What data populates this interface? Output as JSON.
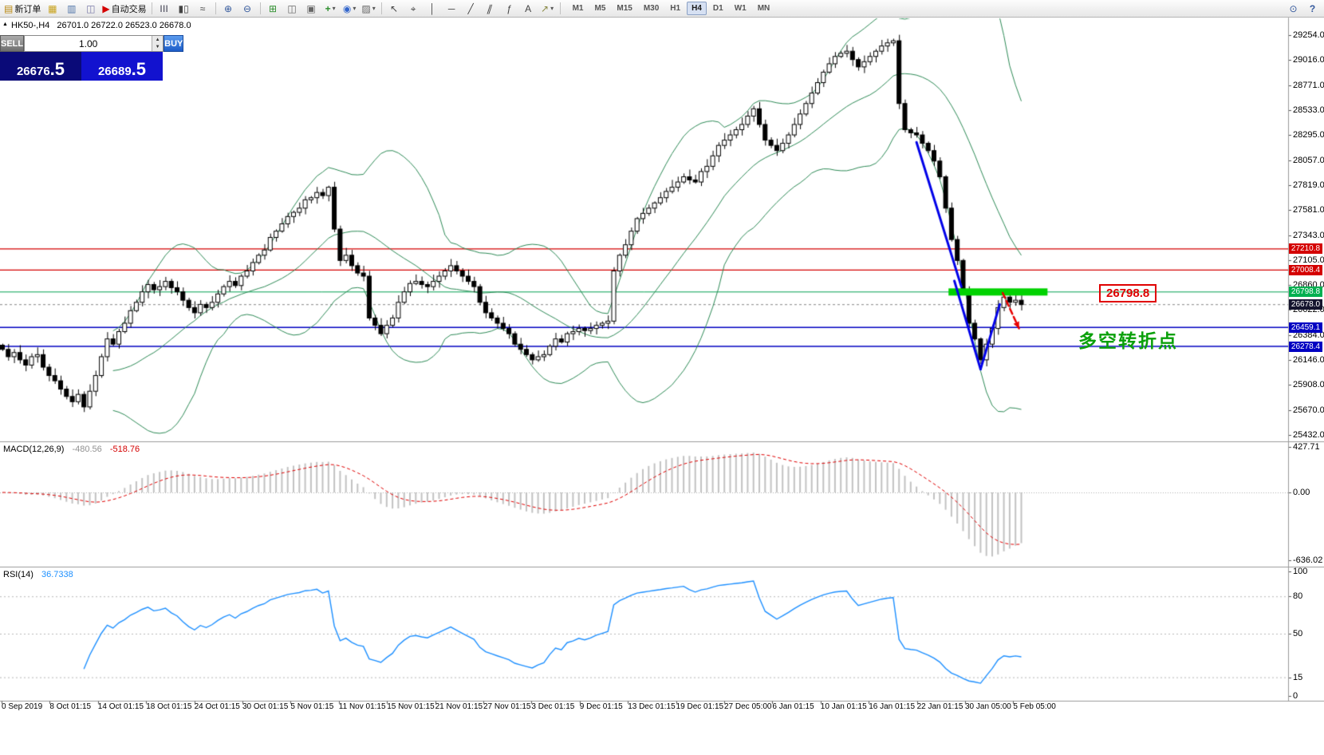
{
  "toolbar": {
    "new_order_label": "新订单",
    "auto_trading_label": "自动交易",
    "timeframes": [
      "M1",
      "M5",
      "M15",
      "M30",
      "H1",
      "H4",
      "D1",
      "W1",
      "MN"
    ],
    "active_timeframe": "H4"
  },
  "chart_header": {
    "symbol_info": "HK50-,H4",
    "ohlc": "26701.0 26722.0 26523.0 26678.0"
  },
  "trade_panel": {
    "sell_label": "SELL",
    "buy_label": "BUY",
    "volume": "1.00",
    "sell_price": "26676",
    "sell_frac": ".5",
    "buy_price": "26689",
    "buy_frac": ".5"
  },
  "annotations": {
    "level_label": "26798.8",
    "turning_point": "多空转折点"
  },
  "macd_panel": {
    "name": "MACD(12,26,9)",
    "main_value": "-480.56",
    "signal_value": "-518.76",
    "axis": [
      {
        "v": 427.71,
        "t": "427.71"
      },
      {
        "v": 0,
        "t": "0.00"
      },
      {
        "v": -636.02,
        "t": "-636.02"
      }
    ]
  },
  "rsi_panel": {
    "name": "RSI(14)",
    "value": "36.7338",
    "axis": [
      {
        "v": 100,
        "t": "100"
      },
      {
        "v": 80,
        "t": "80"
      },
      {
        "v": 50,
        "t": "50"
      },
      {
        "v": 15,
        "t": "15"
      },
      {
        "v": 0,
        "t": "0"
      }
    ],
    "levels": [
      80,
      50,
      15
    ]
  },
  "price_axis": {
    "ticks": [
      "29254.0",
      "29016.0",
      "28771.0",
      "28533.0",
      "28295.0",
      "28057.0",
      "27819.0",
      "27581.0",
      "27343.0",
      "27105.0",
      "26860.0",
      "26622.0",
      "26384.0",
      "26146.0",
      "25908.0",
      "25670.0",
      "25432.0"
    ]
  },
  "price_tags": [
    {
      "text": "27210.8",
      "value": 27210.8,
      "bg": "#d40000",
      "fg": "#ffffff"
    },
    {
      "text": "27008.4",
      "value": 27008.4,
      "bg": "#d40000",
      "fg": "#ffffff"
    },
    {
      "text": "26798.8",
      "value": 26798.8,
      "bg": "#00b050",
      "fg": "#ffffff"
    },
    {
      "text": "26678.0",
      "value": 26678.0,
      "bg": "#14142e",
      "fg": "#ffffff"
    },
    {
      "text": "26459.1",
      "value": 26459.1,
      "bg": "#0202c2",
      "fg": "#ffffff"
    },
    {
      "text": "26278.4",
      "value": 26278.4,
      "bg": "#0202c2",
      "fg": "#ffffff"
    }
  ],
  "time_axis": {
    "labels": [
      "0 Sep 2019",
      "8 Oct 01:15",
      "14 Oct 01:15",
      "18 Oct 01:15",
      "24 Oct 01:15",
      "30 Oct 01:15",
      "5 Nov 01:15",
      "11 Nov 01:15",
      "15 Nov 01:15",
      "21 Nov 01:15",
      "27 Nov 01:15",
      "3 Dec 01:15",
      "9 Dec 01:15",
      "13 Dec 01:15",
      "19 Dec 01:15",
      "27 Dec 05:00",
      "6 Jan 01:15",
      "10 Jan 01:15",
      "16 Jan 01:15",
      "22 Jan 01:15",
      "30 Jan 05:00",
      "5 Feb 05:00"
    ]
  },
  "chart_data": {
    "type": "candlestick",
    "symbol": "HK50-",
    "timeframe": "H4",
    "ohlc_display": {
      "open": 26701.0,
      "high": 26722.0,
      "low": 26523.0,
      "close": 26678.0
    },
    "y_range": {
      "top": 29254.0,
      "bottom": 25432.0
    },
    "macd_range": {
      "top": 427.71,
      "bottom": -636.02
    },
    "rsi_range": {
      "top": 100,
      "bottom": 0
    },
    "closes": [
      26250,
      26180,
      26220,
      26150,
      26100,
      26180,
      26200,
      26080,
      26000,
      25950,
      25870,
      25800,
      25750,
      25820,
      25700,
      25850,
      26000,
      26180,
      26350,
      26300,
      26420,
      26500,
      26620,
      26700,
      26800,
      26870,
      26820,
      26850,
      26900,
      26840,
      26800,
      26720,
      26650,
      26600,
      26680,
      26650,
      26700,
      26780,
      26850,
      26900,
      26860,
      26950,
      27000,
      27080,
      27150,
      27200,
      27320,
      27380,
      27450,
      27520,
      27560,
      27600,
      27680,
      27700,
      27750,
      27720,
      27800,
      27400,
      27100,
      27150,
      27050,
      26980,
      26950,
      26550,
      26480,
      26400,
      26480,
      26550,
      26700,
      26800,
      26880,
      26900,
      26870,
      26850,
      26900,
      26950,
      27000,
      27050,
      27000,
      26950,
      26900,
      26850,
      26700,
      26600,
      26550,
      26500,
      26450,
      26400,
      26300,
      26250,
      26200,
      26150,
      26180,
      26200,
      26280,
      26350,
      26320,
      26400,
      26420,
      26450,
      26430,
      26450,
      26480,
      26500,
      26520,
      27000,
      27150,
      27250,
      27380,
      27500,
      27550,
      27600,
      27650,
      27700,
      27760,
      27800,
      27850,
      27900,
      27870,
      27850,
      27950,
      28000,
      28100,
      28200,
      28250,
      28300,
      28350,
      28400,
      28480,
      28550,
      28400,
      28250,
      28200,
      28150,
      28220,
      28300,
      28400,
      28500,
      28600,
      28700,
      28800,
      28900,
      28980,
      29050,
      29080,
      29100,
      29020,
      28950,
      29000,
      29050,
      29100,
      29150,
      29180,
      29200,
      28600,
      28350,
      28320,
      28300,
      28220,
      28150,
      28050,
      27900,
      27600,
      27300,
      27100,
      26800,
      26500,
      26350,
      26150,
      26300,
      26450,
      26650,
      26750,
      26700,
      26720,
      26678
    ],
    "indicators": {
      "bollinger": {
        "period": 20,
        "deviation": 2,
        "color": "#2e8b57"
      },
      "macd": {
        "fast": 12,
        "slow": 26,
        "signal": 9,
        "main": -480.56,
        "signal_value": -518.76
      },
      "rsi": {
        "period": 14,
        "value": 36.7338,
        "color": "#1e90ff"
      }
    },
    "levels": {
      "resistance": [
        27210.8,
        27008.4
      ],
      "pivot_green": 26798.8,
      "support": [
        26459.1,
        26278.4
      ],
      "current_price": 26678.0
    },
    "drawings": {
      "green_zone": {
        "i_from": 162.5,
        "i_to": 179.5,
        "price": 26798.8
      },
      "blue_trendlines": [
        {
          "from": [
            157,
            28230
          ],
          "to": [
            164.7,
            26850
          ]
        },
        {
          "from": [
            163.5,
            26905
          ],
          "to": [
            168,
            26060
          ]
        },
        {
          "from": [
            168,
            26060
          ],
          "to": [
            171.3,
            26680
          ]
        }
      ],
      "red_arrow": {
        "from": [
          171.8,
          26790
        ],
        "to": [
          174.6,
          26450
        ]
      }
    }
  }
}
